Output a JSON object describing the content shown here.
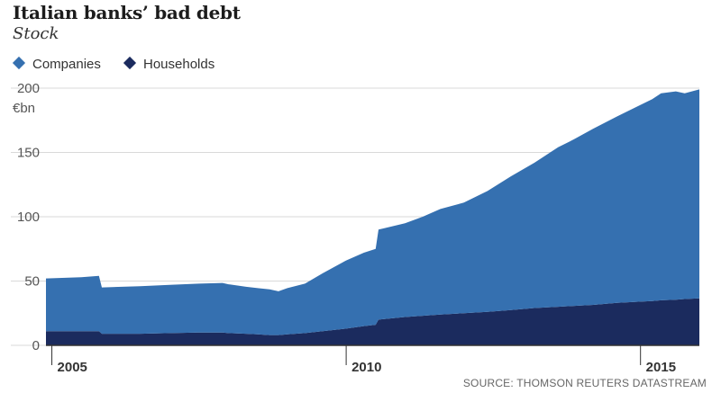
{
  "chart_data": {
    "type": "area",
    "title": "Italian banks’ bad debt",
    "subtitle": "Stock",
    "ylabel": "€bn",
    "ylim": [
      0,
      200
    ],
    "yticks": [
      0,
      50,
      100,
      150,
      200
    ],
    "xlim": [
      2004.9,
      2016.0
    ],
    "xticks": [
      2005,
      2010,
      2015
    ],
    "xtick_labels": [
      "2005",
      "2010",
      "2015"
    ],
    "stacked": true,
    "grid": true,
    "legend_position": "top-left",
    "source": "SOURCE: THOMSON REUTERS DATASTREAM",
    "x": [
      2004.9,
      2005.5,
      2005.8,
      2005.85,
      2006.5,
      2007.0,
      2007.5,
      2007.9,
      2008.0,
      2008.3,
      2008.5,
      2008.7,
      2008.85,
      2009.0,
      2009.3,
      2009.6,
      2010.0,
      2010.3,
      2010.5,
      2010.55,
      2011.0,
      2011.3,
      2011.6,
      2012.0,
      2012.4,
      2012.8,
      2013.2,
      2013.6,
      2013.8,
      2014.2,
      2014.6,
      2015.0,
      2015.2,
      2015.35,
      2015.6,
      2015.75,
      2016.0
    ],
    "series": [
      {
        "name": "Households",
        "color": "#1b2b5e",
        "values": [
          11,
          11,
          11,
          9,
          9,
          9.5,
          10,
          10,
          9.5,
          9,
          8.5,
          8,
          8,
          8.5,
          9.5,
          11,
          13,
          15,
          16,
          20,
          22,
          23,
          24,
          25,
          26,
          27.5,
          29,
          30,
          30.5,
          31.5,
          33,
          34,
          34.5,
          35,
          35.5,
          36,
          36.5
        ]
      },
      {
        "name": "Companies",
        "color": "#3570b0",
        "values": [
          41,
          42,
          43,
          36,
          37,
          37.5,
          38,
          38.5,
          38,
          36.5,
          36,
          35.5,
          34,
          36,
          38.5,
          45,
          53,
          57,
          59,
          70,
          73,
          77,
          82,
          86,
          94,
          104,
          113,
          124,
          128,
          137,
          145,
          153,
          157,
          161,
          162,
          160,
          162.5
        ]
      }
    ]
  }
}
